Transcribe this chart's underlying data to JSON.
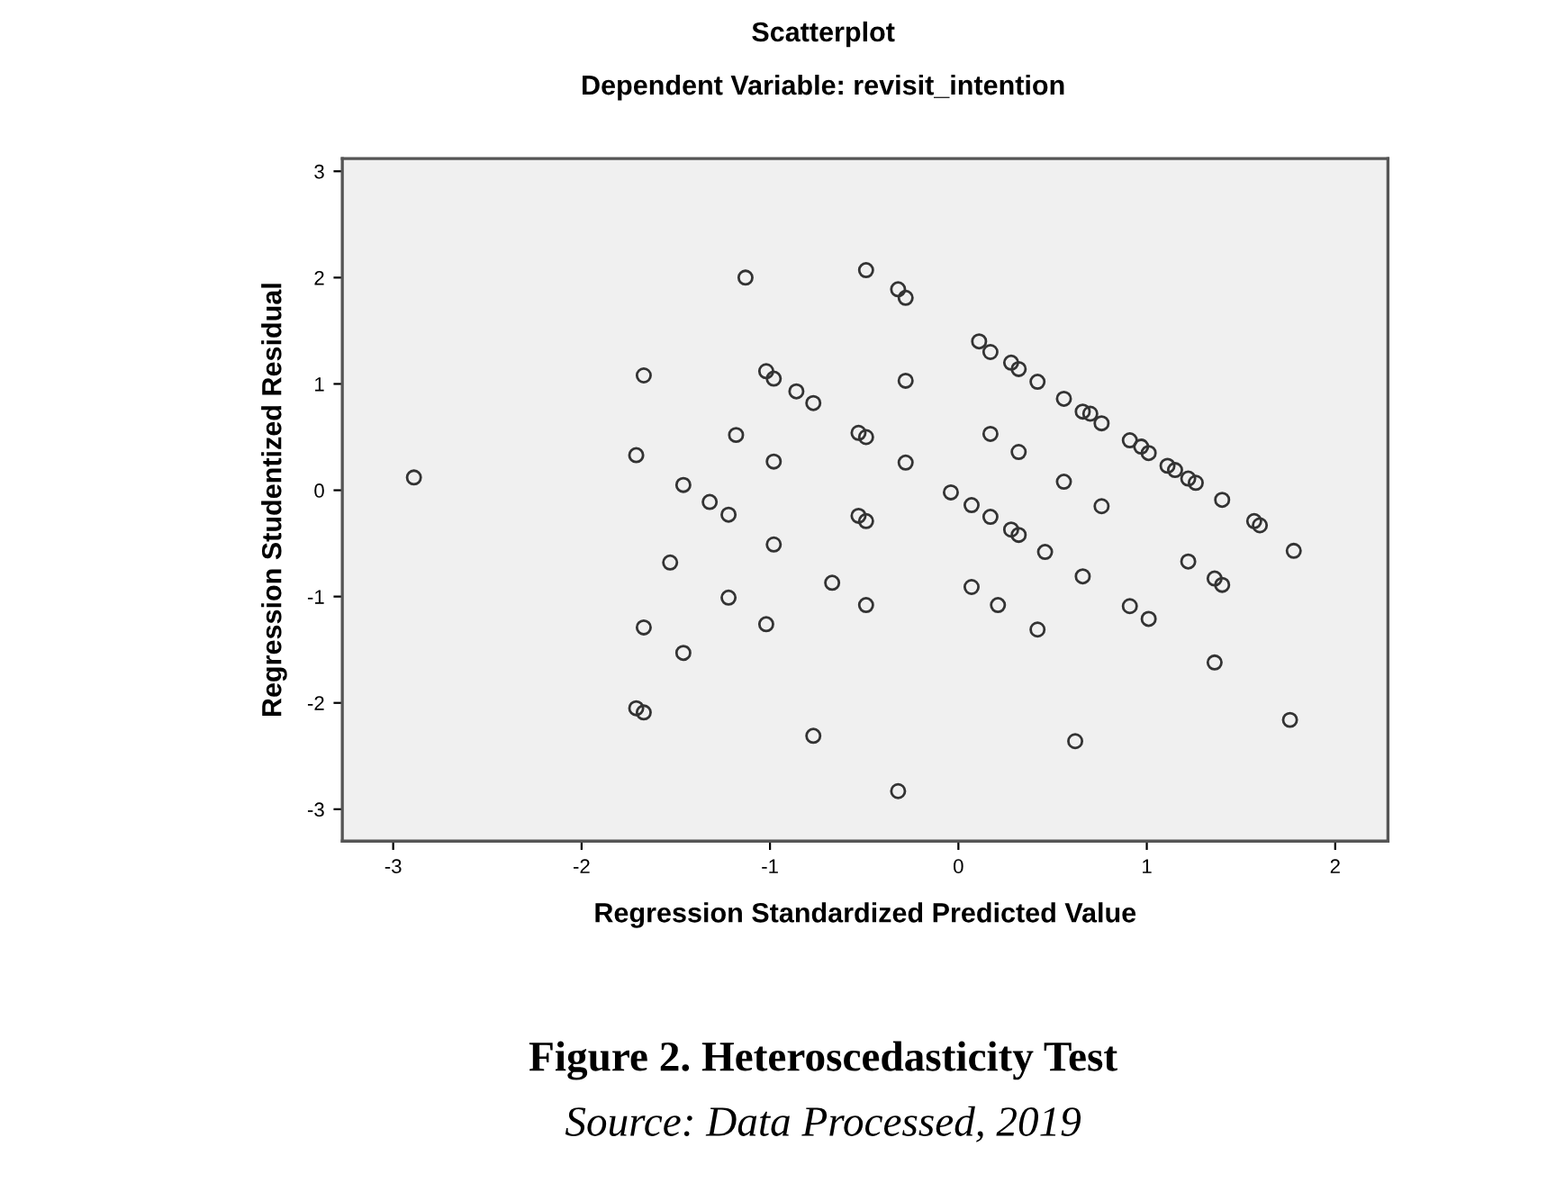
{
  "chart_data": {
    "type": "scatter",
    "title": "Scatterplot",
    "subtitle": "Dependent Variable: revisit_intention",
    "xlabel": "Regression Standardized Predicted Value",
    "ylabel": "Regression Studentized Residual",
    "x": [
      -2.89,
      -1.71,
      -1.18,
      -0.98,
      -1.46,
      -1.32,
      -1.22,
      -0.98,
      -1.53,
      -1.22,
      -1.02,
      -1.67,
      -1.46,
      -1.71,
      -1.67,
      -0.77,
      -1.67,
      -1.02,
      -0.98,
      -1.13,
      -0.49,
      -0.32,
      -0.28,
      0.11,
      0.17,
      0.28,
      0.32,
      0.42,
      0.56,
      0.66,
      0.7,
      0.76,
      0.91,
      0.97,
      1.01,
      1.11,
      1.15,
      1.22,
      1.26,
      1.4,
      1.57,
      1.6,
      1.78,
      -0.86,
      -0.77,
      -0.28,
      -0.53,
      -0.49,
      -0.28,
      0.17,
      0.32,
      0.56,
      0.76,
      -0.04,
      0.07,
      0.17,
      0.28,
      0.32,
      0.46,
      -0.53,
      -0.49,
      -0.67,
      -0.49,
      0.07,
      0.21,
      0.42,
      0.66,
      0.91,
      1.01,
      1.22,
      1.36,
      1.4,
      1.36,
      -0.32,
      0.62,
      1.76
    ],
    "values": [
      0.12,
      0.33,
      0.52,
      0.27,
      0.05,
      -0.11,
      -0.23,
      -0.51,
      -0.68,
      -1.01,
      -1.26,
      -1.29,
      -1.53,
      -2.05,
      -2.09,
      -2.31,
      1.08,
      1.12,
      1.05,
      2.0,
      2.07,
      1.89,
      1.81,
      1.4,
      1.3,
      1.2,
      1.14,
      1.02,
      0.86,
      0.74,
      0.72,
      0.63,
      0.47,
      0.41,
      0.35,
      0.23,
      0.19,
      0.11,
      0.07,
      -0.09,
      -0.29,
      -0.33,
      -0.57,
      0.93,
      0.82,
      1.03,
      0.54,
      0.5,
      0.26,
      0.53,
      0.36,
      0.08,
      -0.15,
      -0.02,
      -0.14,
      -0.25,
      -0.37,
      -0.42,
      -0.58,
      -0.24,
      -0.29,
      -0.87,
      -1.08,
      -0.91,
      -1.08,
      -1.31,
      -0.81,
      -1.09,
      -1.21,
      -0.67,
      -0.83,
      -0.89,
      -1.62,
      -2.83,
      -2.36,
      -2.16
    ],
    "color": "#333333",
    "marker": "circle",
    "xlim": [
      -3.27,
      2.28
    ],
    "ylim": [
      -3.3,
      3.12
    ],
    "xticks": [
      -3,
      -2,
      -1,
      0,
      1,
      2
    ],
    "yticks": [
      -3,
      -2,
      -1,
      0,
      1,
      2,
      3
    ],
    "grid": false,
    "annotations": [
      "Figure 2. Heteroscedasticity Test",
      "Source: Data Processed, 2019"
    ]
  }
}
